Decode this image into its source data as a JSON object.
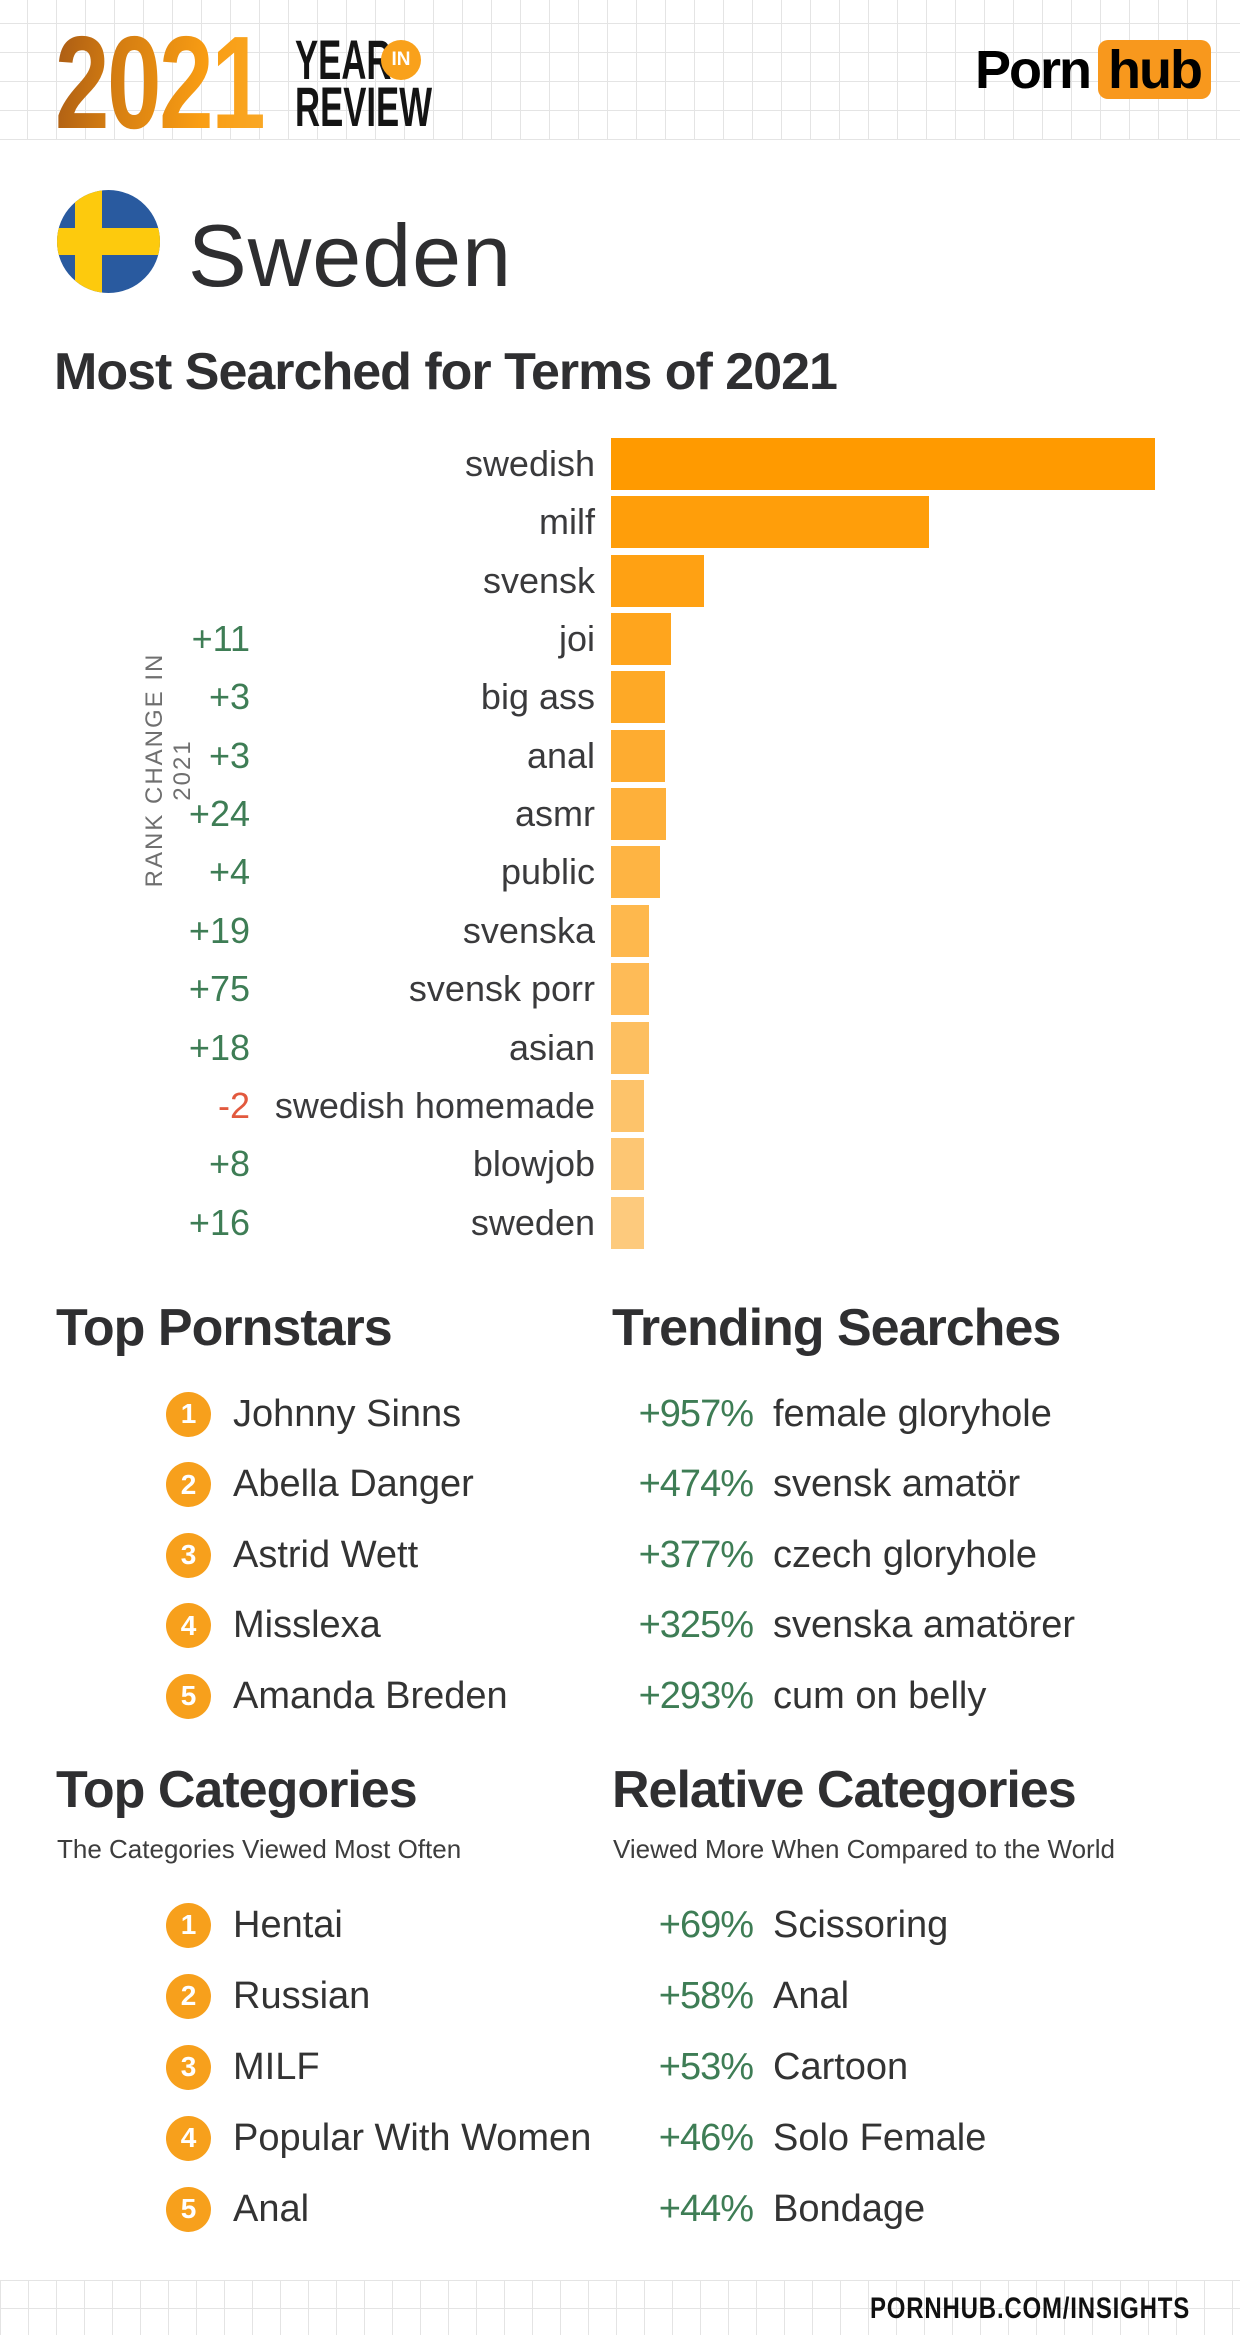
{
  "header": {
    "year_logo": "2021",
    "year_word": "YEAR",
    "in_badge": "IN",
    "review_word": "REVIEW",
    "brand_porn": "Porn",
    "brand_hub": "hub"
  },
  "country": {
    "name": "Sweden"
  },
  "chart_data": {
    "type": "bar",
    "orientation": "horizontal",
    "title": "Most Searched for Terms of 2021",
    "ylabel": "RANK CHANGE IN 2021",
    "categories": [
      "swedish",
      "milf",
      "svensk",
      "joi",
      "big ass",
      "anal",
      "asmr",
      "public",
      "svenska",
      "svensk porr",
      "asian",
      "swedish homemade",
      "blowjob",
      "sweden"
    ],
    "values_relative": [
      100,
      58.5,
      17.1,
      11.0,
      9.9,
      9.9,
      10.1,
      9.0,
      7.0,
      7.0,
      7.0,
      6.1,
      6.1,
      6.1
    ],
    "rank_change": [
      "",
      "",
      "",
      "+11",
      "+3",
      "+3",
      "+24",
      "+4",
      "+19",
      "+75",
      "+18",
      "-2",
      "+8",
      "+16"
    ],
    "legend": "none",
    "grid": "off",
    "bar_color_top": "#ff9a00",
    "bar_color_bottom": "#fdca7d"
  },
  "sections": {
    "top_pornstars": {
      "title": "Top Pornstars",
      "items": [
        {
          "rank": "1",
          "name": "Johnny Sinns"
        },
        {
          "rank": "2",
          "name": "Abella Danger"
        },
        {
          "rank": "3",
          "name": "Astrid Wett"
        },
        {
          "rank": "4",
          "name": "Misslexa"
        },
        {
          "rank": "5",
          "name": "Amanda Breden"
        }
      ]
    },
    "trending_searches": {
      "title": "Trending Searches",
      "items": [
        {
          "pct": "+957%",
          "term": "female gloryhole"
        },
        {
          "pct": "+474%",
          "term": "svensk amatör"
        },
        {
          "pct": "+377%",
          "term": "czech gloryhole"
        },
        {
          "pct": "+325%",
          "term": "svenska amatörer"
        },
        {
          "pct": "+293%",
          "term": "cum on belly"
        }
      ]
    },
    "top_categories": {
      "title": "Top Categories",
      "subtitle": "The Categories Viewed Most Often",
      "items": [
        {
          "rank": "1",
          "name": "Hentai"
        },
        {
          "rank": "2",
          "name": "Russian"
        },
        {
          "rank": "3",
          "name": "MILF"
        },
        {
          "rank": "4",
          "name": "Popular With Women"
        },
        {
          "rank": "5",
          "name": "Anal"
        }
      ]
    },
    "relative_categories": {
      "title": "Relative Categories",
      "subtitle": "Viewed More When Compared to the World",
      "items": [
        {
          "pct": "+69%",
          "term": "Scissoring"
        },
        {
          "pct": "+58%",
          "term": "Anal"
        },
        {
          "pct": "+53%",
          "term": "Cartoon"
        },
        {
          "pct": "+46%",
          "term": "Solo Female"
        },
        {
          "pct": "+44%",
          "term": "Bondage"
        }
      ]
    }
  },
  "footer": {
    "site": "PORNHUB.COM/INSIGHTS"
  },
  "colors": {
    "green": "#3e7d55",
    "red": "#e2593e",
    "circle_orange": "#f7a01c",
    "hub_orange": "#f8981d",
    "in_badge_orange": "#f9a11b",
    "flag_blue": "#295a9f",
    "flag_yellow": "#fdca0d"
  }
}
